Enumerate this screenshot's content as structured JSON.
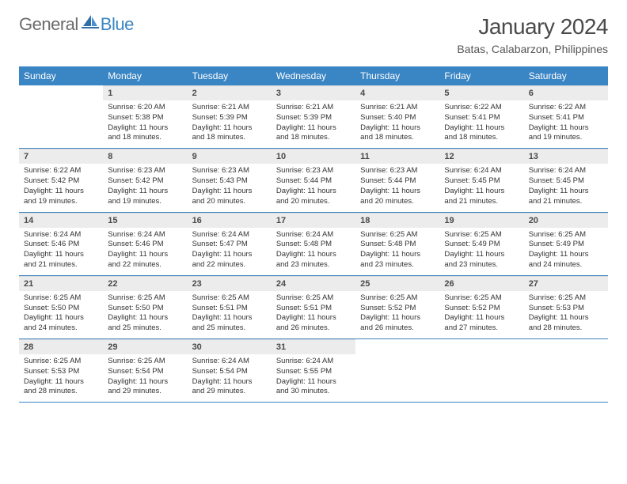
{
  "brand": {
    "part1": "General",
    "part2": "Blue"
  },
  "title": "January 2024",
  "location": "Batas, Calabarzon, Philippines",
  "colors": {
    "header_bg": "#3a85c4",
    "header_text": "#ffffff",
    "daynum_bg": "#ececec",
    "row_border": "#3a85c4",
    "body_text": "#333333",
    "logo_gray": "#6b6b6b",
    "logo_blue": "#3a85c4"
  },
  "day_headers": [
    "Sunday",
    "Monday",
    "Tuesday",
    "Wednesday",
    "Thursday",
    "Friday",
    "Saturday"
  ],
  "weeks": [
    [
      {
        "n": "",
        "sr": "",
        "ss": "",
        "dl": ""
      },
      {
        "n": "1",
        "sr": "6:20 AM",
        "ss": "5:38 PM",
        "dl": "11 hours and 18 minutes."
      },
      {
        "n": "2",
        "sr": "6:21 AM",
        "ss": "5:39 PM",
        "dl": "11 hours and 18 minutes."
      },
      {
        "n": "3",
        "sr": "6:21 AM",
        "ss": "5:39 PM",
        "dl": "11 hours and 18 minutes."
      },
      {
        "n": "4",
        "sr": "6:21 AM",
        "ss": "5:40 PM",
        "dl": "11 hours and 18 minutes."
      },
      {
        "n": "5",
        "sr": "6:22 AM",
        "ss": "5:41 PM",
        "dl": "11 hours and 18 minutes."
      },
      {
        "n": "6",
        "sr": "6:22 AM",
        "ss": "5:41 PM",
        "dl": "11 hours and 19 minutes."
      }
    ],
    [
      {
        "n": "7",
        "sr": "6:22 AM",
        "ss": "5:42 PM",
        "dl": "11 hours and 19 minutes."
      },
      {
        "n": "8",
        "sr": "6:23 AM",
        "ss": "5:42 PM",
        "dl": "11 hours and 19 minutes."
      },
      {
        "n": "9",
        "sr": "6:23 AM",
        "ss": "5:43 PM",
        "dl": "11 hours and 20 minutes."
      },
      {
        "n": "10",
        "sr": "6:23 AM",
        "ss": "5:44 PM",
        "dl": "11 hours and 20 minutes."
      },
      {
        "n": "11",
        "sr": "6:23 AM",
        "ss": "5:44 PM",
        "dl": "11 hours and 20 minutes."
      },
      {
        "n": "12",
        "sr": "6:24 AM",
        "ss": "5:45 PM",
        "dl": "11 hours and 21 minutes."
      },
      {
        "n": "13",
        "sr": "6:24 AM",
        "ss": "5:45 PM",
        "dl": "11 hours and 21 minutes."
      }
    ],
    [
      {
        "n": "14",
        "sr": "6:24 AM",
        "ss": "5:46 PM",
        "dl": "11 hours and 21 minutes."
      },
      {
        "n": "15",
        "sr": "6:24 AM",
        "ss": "5:46 PM",
        "dl": "11 hours and 22 minutes."
      },
      {
        "n": "16",
        "sr": "6:24 AM",
        "ss": "5:47 PM",
        "dl": "11 hours and 22 minutes."
      },
      {
        "n": "17",
        "sr": "6:24 AM",
        "ss": "5:48 PM",
        "dl": "11 hours and 23 minutes."
      },
      {
        "n": "18",
        "sr": "6:25 AM",
        "ss": "5:48 PM",
        "dl": "11 hours and 23 minutes."
      },
      {
        "n": "19",
        "sr": "6:25 AM",
        "ss": "5:49 PM",
        "dl": "11 hours and 23 minutes."
      },
      {
        "n": "20",
        "sr": "6:25 AM",
        "ss": "5:49 PM",
        "dl": "11 hours and 24 minutes."
      }
    ],
    [
      {
        "n": "21",
        "sr": "6:25 AM",
        "ss": "5:50 PM",
        "dl": "11 hours and 24 minutes."
      },
      {
        "n": "22",
        "sr": "6:25 AM",
        "ss": "5:50 PM",
        "dl": "11 hours and 25 minutes."
      },
      {
        "n": "23",
        "sr": "6:25 AM",
        "ss": "5:51 PM",
        "dl": "11 hours and 25 minutes."
      },
      {
        "n": "24",
        "sr": "6:25 AM",
        "ss": "5:51 PM",
        "dl": "11 hours and 26 minutes."
      },
      {
        "n": "25",
        "sr": "6:25 AM",
        "ss": "5:52 PM",
        "dl": "11 hours and 26 minutes."
      },
      {
        "n": "26",
        "sr": "6:25 AM",
        "ss": "5:52 PM",
        "dl": "11 hours and 27 minutes."
      },
      {
        "n": "27",
        "sr": "6:25 AM",
        "ss": "5:53 PM",
        "dl": "11 hours and 28 minutes."
      }
    ],
    [
      {
        "n": "28",
        "sr": "6:25 AM",
        "ss": "5:53 PM",
        "dl": "11 hours and 28 minutes."
      },
      {
        "n": "29",
        "sr": "6:25 AM",
        "ss": "5:54 PM",
        "dl": "11 hours and 29 minutes."
      },
      {
        "n": "30",
        "sr": "6:24 AM",
        "ss": "5:54 PM",
        "dl": "11 hours and 29 minutes."
      },
      {
        "n": "31",
        "sr": "6:24 AM",
        "ss": "5:55 PM",
        "dl": "11 hours and 30 minutes."
      },
      {
        "n": "",
        "sr": "",
        "ss": "",
        "dl": ""
      },
      {
        "n": "",
        "sr": "",
        "ss": "",
        "dl": ""
      },
      {
        "n": "",
        "sr": "",
        "ss": "",
        "dl": ""
      }
    ]
  ],
  "labels": {
    "sunrise": "Sunrise:",
    "sunset": "Sunset:",
    "daylight": "Daylight:"
  }
}
